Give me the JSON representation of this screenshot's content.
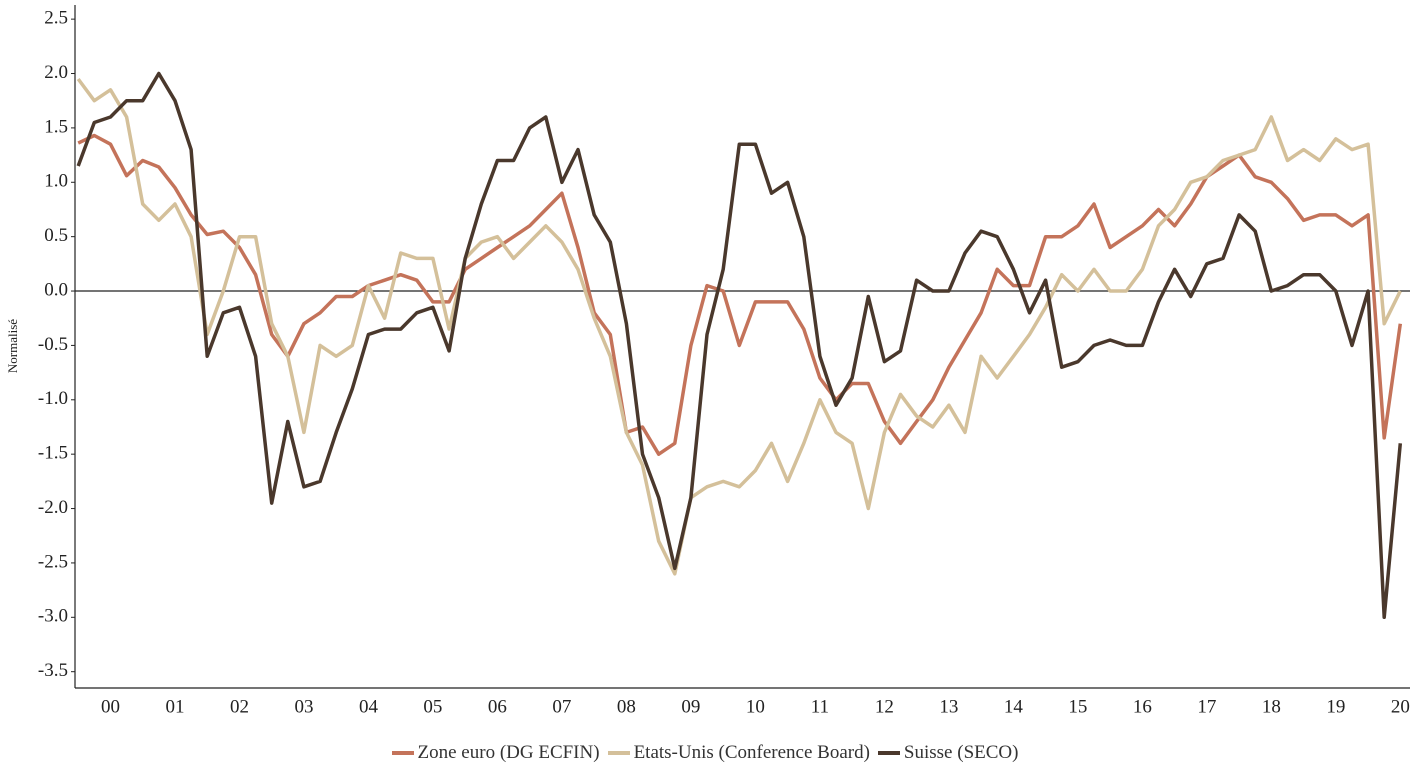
{
  "chart_data": {
    "type": "line",
    "y_label": "Normalisé",
    "x": [
      2000,
      2000.25,
      2000.5,
      2000.75,
      2001,
      2001.25,
      2001.5,
      2001.75,
      2002,
      2002.25,
      2002.5,
      2002.75,
      2003,
      2003.25,
      2003.5,
      2003.75,
      2004,
      2004.25,
      2004.5,
      2004.75,
      2005,
      2005.25,
      2005.5,
      2005.75,
      2006,
      2006.25,
      2006.5,
      2006.75,
      2007,
      2007.25,
      2007.5,
      2007.75,
      2008,
      2008.25,
      2008.5,
      2008.75,
      2009,
      2009.25,
      2009.5,
      2009.75,
      2010,
      2010.25,
      2010.5,
      2010.75,
      2011,
      2011.25,
      2011.5,
      2011.75,
      2012,
      2012.25,
      2012.5,
      2012.75,
      2013,
      2013.25,
      2013.5,
      2013.75,
      2014,
      2014.25,
      2014.5,
      2014.75,
      2015,
      2015.25,
      2015.5,
      2015.75,
      2016,
      2016.25,
      2016.5,
      2016.75,
      2017,
      2017.25,
      2017.5,
      2017.75,
      2018,
      2018.25,
      2018.5,
      2018.75,
      2019,
      2019.25,
      2019.5,
      2019.75,
      2020,
      2020.25,
      2020.5
    ],
    "series": [
      {
        "name": "Zone euro (DG ECFIN)",
        "color": "#c4735a",
        "values": [
          1.36,
          1.43,
          1.35,
          1.06,
          1.2,
          1.14,
          0.95,
          0.7,
          0.52,
          0.55,
          0.4,
          0.15,
          -0.4,
          -0.6,
          -0.3,
          -0.2,
          -0.05,
          -0.05,
          0.05,
          0.1,
          0.15,
          0.1,
          -0.1,
          -0.1,
          0.2,
          0.3,
          0.4,
          0.5,
          0.6,
          0.75,
          0.9,
          0.4,
          -0.2,
          -0.4,
          -1.3,
          -1.25,
          -1.5,
          -1.4,
          -0.5,
          0.05,
          0.0,
          -0.5,
          -0.1,
          -0.1,
          -0.1,
          -0.35,
          -0.8,
          -1.0,
          -0.85,
          -0.85,
          -1.2,
          -1.4,
          -1.2,
          -1.0,
          -0.7,
          -0.45,
          -0.2,
          0.2,
          0.05,
          0.05,
          0.5,
          0.5,
          0.6,
          0.8,
          0.4,
          0.5,
          0.6,
          0.75,
          0.6,
          0.8,
          1.05,
          1.15,
          1.25,
          1.05,
          1.0,
          0.85,
          0.65,
          0.7,
          0.7,
          0.6,
          0.7,
          -1.35,
          -0.3
        ]
      },
      {
        "name": "Etats-Unis (Conference Board)",
        "color": "#d4c09a",
        "values": [
          1.95,
          1.75,
          1.85,
          1.6,
          0.8,
          0.65,
          0.8,
          0.5,
          -0.4,
          0.0,
          0.5,
          0.5,
          -0.3,
          -0.6,
          -1.3,
          -0.5,
          -0.6,
          -0.5,
          0.05,
          -0.25,
          0.35,
          0.3,
          0.3,
          -0.35,
          0.3,
          0.45,
          0.5,
          0.3,
          0.45,
          0.6,
          0.45,
          0.2,
          -0.25,
          -0.6,
          -1.3,
          -1.6,
          -2.3,
          -2.6,
          -1.9,
          -1.8,
          -1.75,
          -1.8,
          -1.65,
          -1.4,
          -1.75,
          -1.4,
          -1.0,
          -1.3,
          -1.4,
          -2.0,
          -1.3,
          -0.95,
          -1.15,
          -1.25,
          -1.05,
          -1.3,
          -0.6,
          -0.8,
          -0.6,
          -0.4,
          -0.15,
          0.15,
          0.0,
          0.2,
          0.0,
          0.0,
          0.2,
          0.6,
          0.75,
          1.0,
          1.05,
          1.2,
          1.25,
          1.3,
          1.6,
          1.2,
          1.3,
          1.2,
          1.4,
          1.3,
          1.35,
          -0.3,
          0.0
        ]
      },
      {
        "name": "Suisse (SECO)",
        "color": "#4a382c",
        "values": [
          1.15,
          1.55,
          1.6,
          1.75,
          1.75,
          2.0,
          1.75,
          1.3,
          -0.6,
          -0.2,
          -0.15,
          -0.6,
          -1.95,
          -1.2,
          -1.8,
          -1.75,
          -1.3,
          -0.9,
          -0.4,
          -0.35,
          -0.35,
          -0.2,
          -0.15,
          -0.55,
          0.3,
          0.8,
          1.2,
          1.2,
          1.5,
          1.6,
          1.0,
          1.3,
          0.7,
          0.45,
          -0.3,
          -1.5,
          -1.9,
          -2.55,
          -1.9,
          -0.4,
          0.2,
          1.35,
          1.35,
          0.9,
          1.0,
          0.5,
          -0.6,
          -1.05,
          -0.8,
          -0.05,
          -0.65,
          -0.55,
          0.1,
          0.0,
          0.0,
          0.35,
          0.55,
          0.5,
          0.2,
          -0.2,
          0.1,
          -0.7,
          -0.65,
          -0.5,
          -0.45,
          -0.5,
          -0.5,
          -0.1,
          0.2,
          -0.05,
          0.25,
          0.3,
          0.7,
          0.55,
          0.0,
          0.05,
          0.15,
          0.15,
          0.0,
          -0.5,
          0.0,
          -3.0,
          -1.4
        ]
      }
    ],
    "xlim": [
      1999.95,
      2020.65
    ],
    "xticks": [
      {
        "value": 2000.5,
        "label": "00"
      },
      {
        "value": 2001.5,
        "label": "01"
      },
      {
        "value": 2002.5,
        "label": "02"
      },
      {
        "value": 2003.5,
        "label": "03"
      },
      {
        "value": 2004.5,
        "label": "04"
      },
      {
        "value": 2005.5,
        "label": "05"
      },
      {
        "value": 2006.5,
        "label": "06"
      },
      {
        "value": 2007.5,
        "label": "07"
      },
      {
        "value": 2008.5,
        "label": "08"
      },
      {
        "value": 2009.5,
        "label": "09"
      },
      {
        "value": 2010.5,
        "label": "10"
      },
      {
        "value": 2011.5,
        "label": "11"
      },
      {
        "value": 2012.5,
        "label": "12"
      },
      {
        "value": 2013.5,
        "label": "13"
      },
      {
        "value": 2014.5,
        "label": "14"
      },
      {
        "value": 2015.5,
        "label": "15"
      },
      {
        "value": 2016.5,
        "label": "16"
      },
      {
        "value": 2017.5,
        "label": "17"
      },
      {
        "value": 2018.5,
        "label": "18"
      },
      {
        "value": 2019.5,
        "label": "19"
      },
      {
        "value": 2020.5,
        "label": "20"
      }
    ],
    "ylim": [
      -3.65,
      2.63
    ],
    "yticks": [
      2.5,
      {
        "value": 2,
        "label": "2.0"
      },
      1.5,
      {
        "value": 1,
        "label": "1.0"
      },
      0.5,
      {
        "value": 0,
        "label": "0.0"
      },
      -0.5,
      {
        "value": -1,
        "label": "-1.0"
      },
      -1.5,
      {
        "value": -2,
        "label": "-2.0"
      },
      -2.5,
      {
        "value": -3,
        "label": "-3.0"
      },
      -3.5
    ],
    "zero_line": true
  }
}
